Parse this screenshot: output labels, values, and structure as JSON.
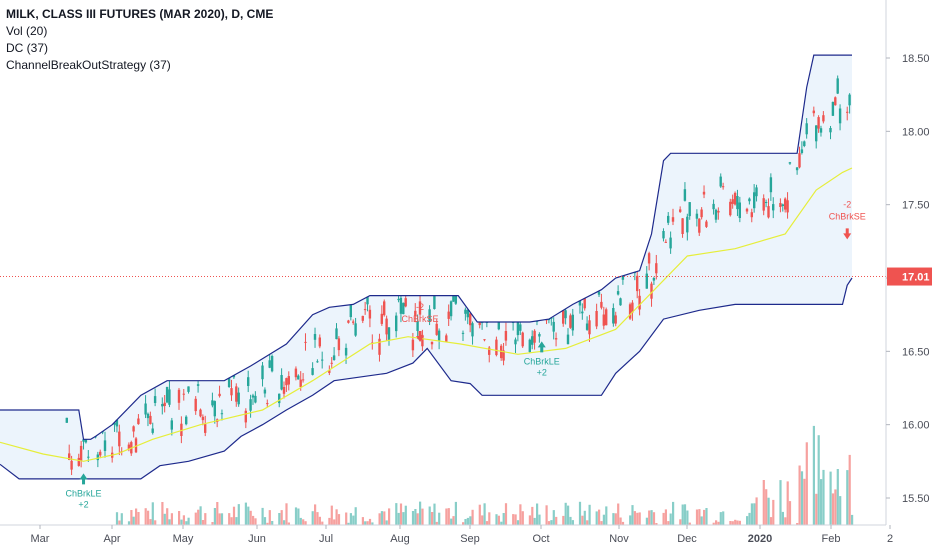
{
  "legend": {
    "title": "MILK, CLASS III FUTURES (MAR 2020), D, CME",
    "vol": "Vol (20)",
    "dc": "DC (37)",
    "strategy": "ChannelBreakOutStrategy (37)"
  },
  "colors": {
    "up": "#26a69a",
    "down": "#ef5350",
    "channel": "#1e2a8c",
    "channel_fill": "#ecf4fc",
    "basis": "#e6ee3a",
    "last_price": "#ef5350",
    "long_signal": "#26a69a",
    "short_signal": "#ef5350"
  },
  "chart_data": {
    "type": "candlestick",
    "title": "MILK, CLASS III FUTURES (MAR 2020), D, CME",
    "y_ticks": [
      "15.50",
      "16.00",
      "16.50",
      "17.00",
      "17.50",
      "18.00",
      "18.50"
    ],
    "ylim": [
      15.25,
      18.85
    ],
    "x_ticks": [
      "Mar",
      "Apr",
      "May",
      "Jun",
      "Jul",
      "Aug",
      "Sep",
      "Oct",
      "Nov",
      "Dec",
      "2020",
      "Feb",
      "2"
    ],
    "last_price": "17.01",
    "grid": false,
    "donchian_upper": [
      {
        "x": "2019-02-20",
        "y": 16.1
      },
      {
        "x": "2019-03-25",
        "y": 16.1
      },
      {
        "x": "2019-03-27",
        "y": 15.9
      },
      {
        "x": "2019-03-30",
        "y": 15.9
      },
      {
        "x": "2019-04-01",
        "y": 15.92
      },
      {
        "x": "2019-04-08",
        "y": 16.0
      },
      {
        "x": "2019-04-20",
        "y": 16.2
      },
      {
        "x": "2019-05-01",
        "y": 16.3
      },
      {
        "x": "2019-05-25",
        "y": 16.3
      },
      {
        "x": "2019-06-05",
        "y": 16.4
      },
      {
        "x": "2019-06-20",
        "y": 16.55
      },
      {
        "x": "2019-07-01",
        "y": 16.75
      },
      {
        "x": "2019-07-08",
        "y": 16.8
      },
      {
        "x": "2019-07-18",
        "y": 16.82
      },
      {
        "x": "2019-07-25",
        "y": 16.88
      },
      {
        "x": "2019-08-31",
        "y": 16.88
      },
      {
        "x": "2019-09-08",
        "y": 16.7
      },
      {
        "x": "2019-09-30",
        "y": 16.7
      },
      {
        "x": "2019-10-08",
        "y": 16.72
      },
      {
        "x": "2019-10-18",
        "y": 16.82
      },
      {
        "x": "2019-10-30",
        "y": 16.92
      },
      {
        "x": "2019-11-05",
        "y": 17.0
      },
      {
        "x": "2019-11-15",
        "y": 17.05
      },
      {
        "x": "2019-11-20",
        "y": 17.3
      },
      {
        "x": "2019-11-25",
        "y": 17.8
      },
      {
        "x": "2019-11-28",
        "y": 17.85
      },
      {
        "x": "2020-01-20",
        "y": 17.85
      },
      {
        "x": "2020-01-24",
        "y": 18.3
      },
      {
        "x": "2020-01-27",
        "y": 18.52
      },
      {
        "x": "2020-02-12",
        "y": 18.52
      }
    ],
    "donchian_basis": [
      {
        "x": "2019-02-20",
        "y": 15.88
      },
      {
        "x": "2019-03-10",
        "y": 15.8
      },
      {
        "x": "2019-03-27",
        "y": 15.75
      },
      {
        "x": "2019-04-10",
        "y": 15.8
      },
      {
        "x": "2019-04-25",
        "y": 15.9
      },
      {
        "x": "2019-05-15",
        "y": 16.0
      },
      {
        "x": "2019-06-10",
        "y": 16.1
      },
      {
        "x": "2019-07-01",
        "y": 16.3
      },
      {
        "x": "2019-07-25",
        "y": 16.55
      },
      {
        "x": "2019-08-10",
        "y": 16.6
      },
      {
        "x": "2019-09-01",
        "y": 16.55
      },
      {
        "x": "2019-09-25",
        "y": 16.48
      },
      {
        "x": "2019-10-15",
        "y": 16.52
      },
      {
        "x": "2019-11-05",
        "y": 16.65
      },
      {
        "x": "2019-11-20",
        "y": 16.9
      },
      {
        "x": "2019-12-05",
        "y": 17.15
      },
      {
        "x": "2019-12-25",
        "y": 17.2
      },
      {
        "x": "2020-01-15",
        "y": 17.3
      },
      {
        "x": "2020-01-28",
        "y": 17.6
      },
      {
        "x": "2020-02-08",
        "y": 17.72
      },
      {
        "x": "2020-02-12",
        "y": 17.75
      }
    ],
    "donchian_lower": [
      {
        "x": "2019-02-20",
        "y": 15.73
      },
      {
        "x": "2019-02-28",
        "y": 15.63
      },
      {
        "x": "2019-04-20",
        "y": 15.63
      },
      {
        "x": "2019-04-28",
        "y": 15.72
      },
      {
        "x": "2019-05-10",
        "y": 15.75
      },
      {
        "x": "2019-05-25",
        "y": 15.82
      },
      {
        "x": "2019-06-01",
        "y": 15.92
      },
      {
        "x": "2019-06-10",
        "y": 16.0
      },
      {
        "x": "2019-06-20",
        "y": 16.1
      },
      {
        "x": "2019-07-01",
        "y": 16.2
      },
      {
        "x": "2019-07-10",
        "y": 16.3
      },
      {
        "x": "2019-08-01",
        "y": 16.35
      },
      {
        "x": "2019-08-12",
        "y": 16.42
      },
      {
        "x": "2019-08-18",
        "y": 16.52
      },
      {
        "x": "2019-08-28",
        "y": 16.3
      },
      {
        "x": "2019-09-05",
        "y": 16.28
      },
      {
        "x": "2019-09-10",
        "y": 16.2
      },
      {
        "x": "2019-10-05",
        "y": 16.2
      },
      {
        "x": "2019-10-30",
        "y": 16.2
      },
      {
        "x": "2019-11-05",
        "y": 16.35
      },
      {
        "x": "2019-11-15",
        "y": 16.5
      },
      {
        "x": "2019-11-25",
        "y": 16.72
      },
      {
        "x": "2019-12-10",
        "y": 16.78
      },
      {
        "x": "2019-12-25",
        "y": 16.82
      },
      {
        "x": "2020-01-25",
        "y": 16.82
      },
      {
        "x": "2020-02-08",
        "y": 16.82
      },
      {
        "x": "2020-02-10",
        "y": 16.95
      },
      {
        "x": "2020-02-12",
        "y": 17.0
      }
    ],
    "signals": [
      {
        "side": "long",
        "label": "ChBrkLE",
        "qty": "+2",
        "x": "2019-03-27",
        "y": 15.75
      },
      {
        "side": "short",
        "label": "ChBrkSE",
        "qty": "-2",
        "x": "2019-08-15",
        "y": 16.55
      },
      {
        "side": "long",
        "label": "ChBrkLE",
        "qty": "+2",
        "x": "2019-10-05",
        "y": 16.65
      },
      {
        "side": "short",
        "label": "ChBrkSE",
        "qty": "-2",
        "x": "2020-02-10",
        "y": 17.25
      }
    ]
  }
}
